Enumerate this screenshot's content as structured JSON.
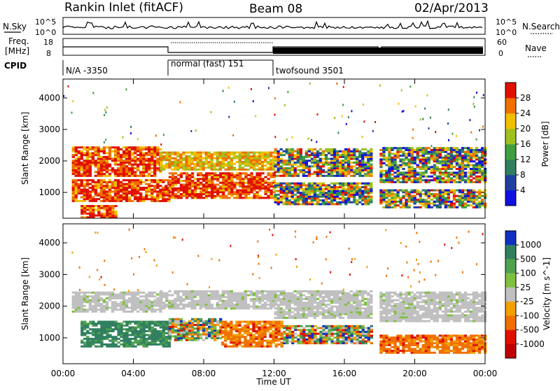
{
  "header": {
    "station": "Rankin Inlet (fitACF)",
    "beam": "Beam 08",
    "date": "02/Apr/2013"
  },
  "top_panels": {
    "nsky_label": "N.Sky",
    "nsky_ticks": [
      "10^5",
      "10^0"
    ],
    "nsearch_label": "N.Search",
    "nsearch_ticks": [
      "10^5",
      "10^0"
    ],
    "freq_label": "Freq.",
    "freq_unit": "[MHz]",
    "freq_ticks": [
      "18",
      "8"
    ],
    "nave_label": "Nave",
    "nave_ticks": [
      "60",
      "0"
    ],
    "cpid_label": "CPID",
    "cpid_modes": [
      "N/A -3350",
      "normal (fast) 151",
      "twofsound 3501"
    ]
  },
  "chart_data": [
    {
      "type": "heatmap",
      "name": "power-panel",
      "ylabel": "Slant Range [km]",
      "x_ticks": [
        "00:00",
        "04:00",
        "08:00",
        "12:00",
        "16:00",
        "20:00",
        "00:00"
      ],
      "xlim": [
        0,
        24
      ],
      "y_ticks": [
        "1000",
        "2000",
        "3000",
        "4000"
      ],
      "ylim": [
        180,
        4600
      ],
      "colorbar": {
        "label": "Power [dB]",
        "ticks": [
          "4",
          "8",
          "12",
          "16",
          "20",
          "24",
          "28"
        ],
        "range": [
          0,
          32
        ],
        "colors": [
          "#1010e0",
          "#2040a0",
          "#308060",
          "#40a040",
          "#a0c020",
          "#f0c000",
          "#f07000",
          "#e01000"
        ]
      },
      "bands": [
        {
          "t0": 0.5,
          "t1": 5.5,
          "r0": 1500,
          "r1": 2450,
          "level": "high"
        },
        {
          "t0": 5.5,
          "t1": 12.0,
          "r0": 1700,
          "r1": 2300,
          "level": "mid"
        },
        {
          "t0": 12.0,
          "t1": 17.5,
          "r0": 1500,
          "r1": 2400,
          "level": "mixed"
        },
        {
          "t0": 18.0,
          "t1": 24.0,
          "r0": 1300,
          "r1": 2400,
          "level": "mixed"
        },
        {
          "t0": 0.5,
          "t1": 6.0,
          "r0": 700,
          "r1": 1400,
          "level": "high"
        },
        {
          "t0": 6.0,
          "t1": 12.0,
          "r0": 800,
          "r1": 1600,
          "level": "high"
        },
        {
          "t0": 12.0,
          "t1": 17.5,
          "r0": 600,
          "r1": 1300,
          "level": "mixed"
        },
        {
          "t0": 18.0,
          "t1": 24.0,
          "r0": 500,
          "r1": 1100,
          "level": "mixed"
        },
        {
          "t0": 1.0,
          "t1": 3.0,
          "r0": 180,
          "r1": 600,
          "level": "high"
        }
      ]
    },
    {
      "type": "heatmap",
      "name": "velocity-panel",
      "xlabel": "Time UT",
      "ylabel": "Slant Range [km]",
      "x_ticks": [
        "00:00",
        "04:00",
        "08:00",
        "12:00",
        "16:00",
        "20:00",
        "00:00"
      ],
      "xlim": [
        0,
        24
      ],
      "y_ticks": [
        "1000",
        "2000",
        "3000",
        "4000"
      ],
      "ylim": [
        180,
        4600
      ],
      "colorbar": {
        "label": "Velocity [m s^-1]",
        "ticks": [
          "1000",
          "500",
          "100",
          "25",
          "-25",
          "-100",
          "-500",
          "-1000"
        ],
        "colors": [
          "#1030c0",
          "#308060",
          "#50a050",
          "#80c040",
          "#c0c0c0",
          "#f0a000",
          "#f07000",
          "#e01000",
          "#c00000"
        ]
      },
      "bands": [
        {
          "t0": 0.5,
          "t1": 5.5,
          "r0": 1800,
          "r1": 2450,
          "level": "gray"
        },
        {
          "t0": 5.5,
          "t1": 12.0,
          "r0": 1900,
          "r1": 2450,
          "level": "gray"
        },
        {
          "t0": 12.0,
          "t1": 17.5,
          "r0": 1600,
          "r1": 2450,
          "level": "gray"
        },
        {
          "t0": 18.0,
          "t1": 24.0,
          "r0": 1500,
          "r1": 2450,
          "level": "gray"
        },
        {
          "t0": 1.0,
          "t1": 6.0,
          "r0": 700,
          "r1": 1500,
          "level": "green"
        },
        {
          "t0": 6.0,
          "t1": 9.0,
          "r0": 900,
          "r1": 1600,
          "level": "mixed"
        },
        {
          "t0": 9.0,
          "t1": 12.5,
          "r0": 700,
          "r1": 1500,
          "level": "orange"
        },
        {
          "t0": 12.5,
          "t1": 17.5,
          "r0": 800,
          "r1": 1400,
          "level": "mixed"
        },
        {
          "t0": 18.0,
          "t1": 24.0,
          "r0": 500,
          "r1": 1100,
          "level": "orange"
        }
      ]
    }
  ]
}
